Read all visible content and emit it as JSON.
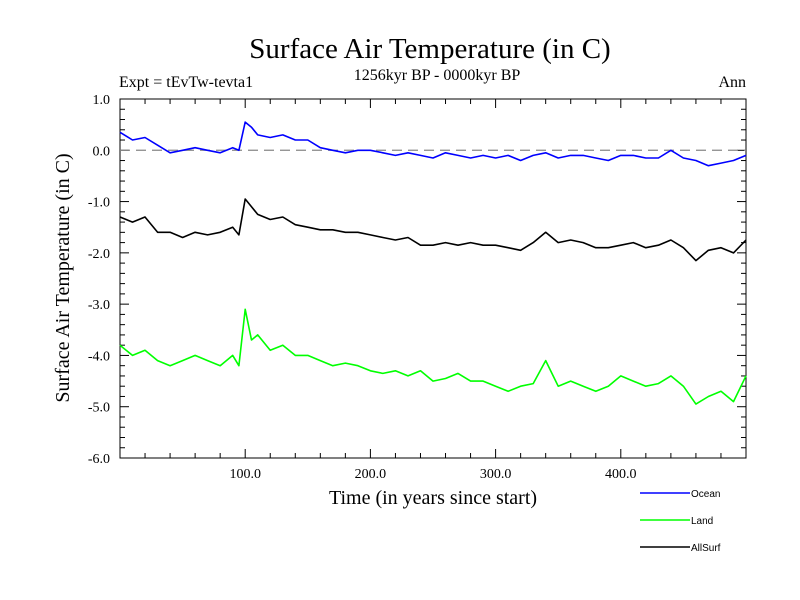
{
  "chart_data": {
    "type": "line",
    "title": "Surface Air Temperature (in C)",
    "subtitle": "1256kyr BP - 0000kyr BP",
    "experiment_label": "Expt = tEvTw-tevta1",
    "season_label": "Ann",
    "xlabel": "Time (in years since start)",
    "ylabel": "Surface Air Temperature (in C)",
    "xlim": [
      0,
      500
    ],
    "ylim": [
      -6.0,
      1.0
    ],
    "xticks": [
      100,
      200,
      300,
      400
    ],
    "xtick_labels": [
      "100.0",
      "200.0",
      "300.0",
      "400.0"
    ],
    "yticks": [
      1.0,
      0.0,
      -1.0,
      -2.0,
      -3.0,
      -4.0,
      -5.0,
      -6.0
    ],
    "ytick_labels": [
      "1.0",
      "0.0",
      "-1.0",
      "-2.0",
      "-3.0",
      "-4.0",
      "-5.0",
      "-6.0"
    ],
    "reference_line": {
      "y": 0.0,
      "style": "dashed"
    },
    "series": [
      {
        "name": "Ocean",
        "color": "#0000ff",
        "x": [
          0,
          10,
          20,
          30,
          40,
          50,
          60,
          70,
          80,
          90,
          95,
          100,
          105,
          110,
          120,
          130,
          140,
          150,
          160,
          170,
          180,
          190,
          200,
          210,
          220,
          230,
          240,
          250,
          260,
          270,
          280,
          290,
          300,
          310,
          320,
          330,
          340,
          350,
          360,
          370,
          380,
          390,
          400,
          410,
          420,
          430,
          440,
          450,
          460,
          470,
          480,
          490,
          500
        ],
        "values": [
          0.35,
          0.2,
          0.25,
          0.1,
          -0.05,
          0.0,
          0.05,
          0.0,
          -0.05,
          0.05,
          0.0,
          0.55,
          0.45,
          0.3,
          0.25,
          0.3,
          0.2,
          0.2,
          0.05,
          0.0,
          -0.05,
          0.0,
          0.0,
          -0.05,
          -0.1,
          -0.05,
          -0.1,
          -0.15,
          -0.05,
          -0.1,
          -0.15,
          -0.1,
          -0.15,
          -0.1,
          -0.2,
          -0.1,
          -0.05,
          -0.15,
          -0.1,
          -0.1,
          -0.15,
          -0.2,
          -0.1,
          -0.1,
          -0.15,
          -0.15,
          0.0,
          -0.15,
          -0.2,
          -0.3,
          -0.25,
          -0.2,
          -0.1
        ]
      },
      {
        "name": "AllSurf",
        "color": "#000000",
        "x": [
          0,
          10,
          20,
          30,
          40,
          50,
          60,
          70,
          80,
          90,
          95,
          100,
          105,
          110,
          120,
          130,
          140,
          150,
          160,
          170,
          180,
          190,
          200,
          210,
          220,
          230,
          240,
          250,
          260,
          270,
          280,
          290,
          300,
          310,
          320,
          330,
          340,
          350,
          360,
          370,
          380,
          390,
          400,
          410,
          420,
          430,
          440,
          450,
          460,
          470,
          480,
          490,
          500
        ],
        "values": [
          -1.3,
          -1.4,
          -1.3,
          -1.6,
          -1.6,
          -1.7,
          -1.6,
          -1.65,
          -1.6,
          -1.5,
          -1.65,
          -0.95,
          -1.1,
          -1.25,
          -1.35,
          -1.3,
          -1.45,
          -1.5,
          -1.55,
          -1.55,
          -1.6,
          -1.6,
          -1.65,
          -1.7,
          -1.75,
          -1.7,
          -1.85,
          -1.85,
          -1.8,
          -1.85,
          -1.8,
          -1.85,
          -1.85,
          -1.9,
          -1.95,
          -1.8,
          -1.6,
          -1.8,
          -1.75,
          -1.8,
          -1.9,
          -1.9,
          -1.85,
          -1.8,
          -1.9,
          -1.85,
          -1.75,
          -1.9,
          -2.15,
          -1.95,
          -1.9,
          -2.0,
          -1.75
        ]
      },
      {
        "name": "Land",
        "color": "#00ff00",
        "x": [
          0,
          10,
          20,
          30,
          40,
          50,
          60,
          70,
          80,
          90,
          95,
          100,
          105,
          110,
          120,
          130,
          140,
          150,
          160,
          170,
          180,
          190,
          200,
          210,
          220,
          230,
          240,
          250,
          260,
          270,
          280,
          290,
          300,
          310,
          320,
          330,
          340,
          350,
          360,
          370,
          380,
          390,
          400,
          410,
          420,
          430,
          440,
          450,
          460,
          470,
          480,
          490,
          500
        ],
        "values": [
          -3.8,
          -4.0,
          -3.9,
          -4.1,
          -4.2,
          -4.1,
          -4.0,
          -4.1,
          -4.2,
          -4.0,
          -4.2,
          -3.1,
          -3.7,
          -3.6,
          -3.9,
          -3.8,
          -4.0,
          -4.0,
          -4.1,
          -4.2,
          -4.15,
          -4.2,
          -4.3,
          -4.35,
          -4.3,
          -4.4,
          -4.3,
          -4.5,
          -4.45,
          -4.35,
          -4.5,
          -4.5,
          -4.6,
          -4.7,
          -4.6,
          -4.55,
          -4.1,
          -4.6,
          -4.5,
          -4.6,
          -4.7,
          -4.6,
          -4.4,
          -4.5,
          -4.6,
          -4.55,
          -4.4,
          -4.6,
          -4.95,
          -4.8,
          -4.7,
          -4.9,
          -4.4
        ]
      }
    ],
    "legend": {
      "position": "bottom-right",
      "entries": [
        {
          "name": "Ocean",
          "color": "#0000ff"
        },
        {
          "name": "Land",
          "color": "#00ff00"
        },
        {
          "name": "AllSurf",
          "color": "#000000"
        }
      ]
    }
  }
}
